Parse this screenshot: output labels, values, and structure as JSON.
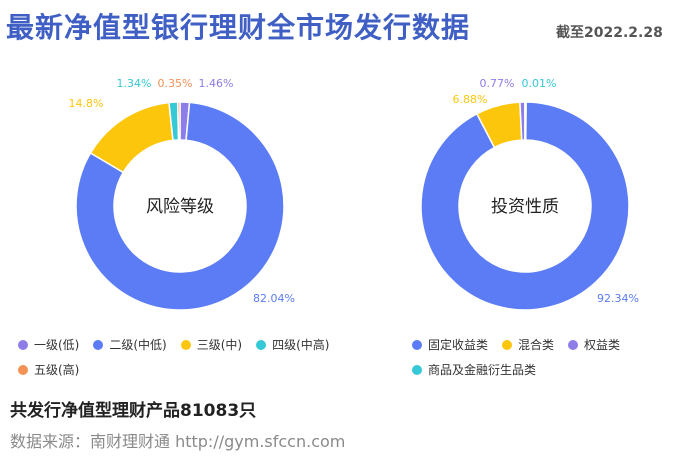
{
  "header": {
    "title": "最新净值型银行理财全市场发行数据",
    "date": "截至2022.2.28"
  },
  "chart_data": [
    {
      "type": "pie",
      "title": "风险等级",
      "categories": [
        "一级(低)",
        "二级(中低)",
        "三级(中)",
        "四级(中高)",
        "五级(高)"
      ],
      "values": [
        1.46,
        82.04,
        14.8,
        1.34,
        0.35
      ],
      "value_labels": [
        "1.46%",
        "82.04%",
        "14.8%",
        "1.34%",
        "0.35%"
      ],
      "colors": [
        "#8c7de8",
        "#5b7cf4",
        "#fcc60d",
        "#35c8d6",
        "#f49157"
      ],
      "legend": "bottom"
    },
    {
      "type": "pie",
      "title": "投资性质",
      "categories": [
        "固定收益类",
        "混合类",
        "权益类",
        "商品及金融衍生品类"
      ],
      "values": [
        92.34,
        6.88,
        0.77,
        0.01
      ],
      "value_labels": [
        "92.34%",
        "6.88%",
        "0.77%",
        "0.01%"
      ],
      "colors": [
        "#5b7cf4",
        "#fcc60d",
        "#8c7de8",
        "#35c8d6"
      ],
      "legend": "bottom"
    }
  ],
  "footer": {
    "summary": "共发行净值型理财产品81083只",
    "source": "数据来源：南财理财通 http://gym.sfccn.com"
  }
}
